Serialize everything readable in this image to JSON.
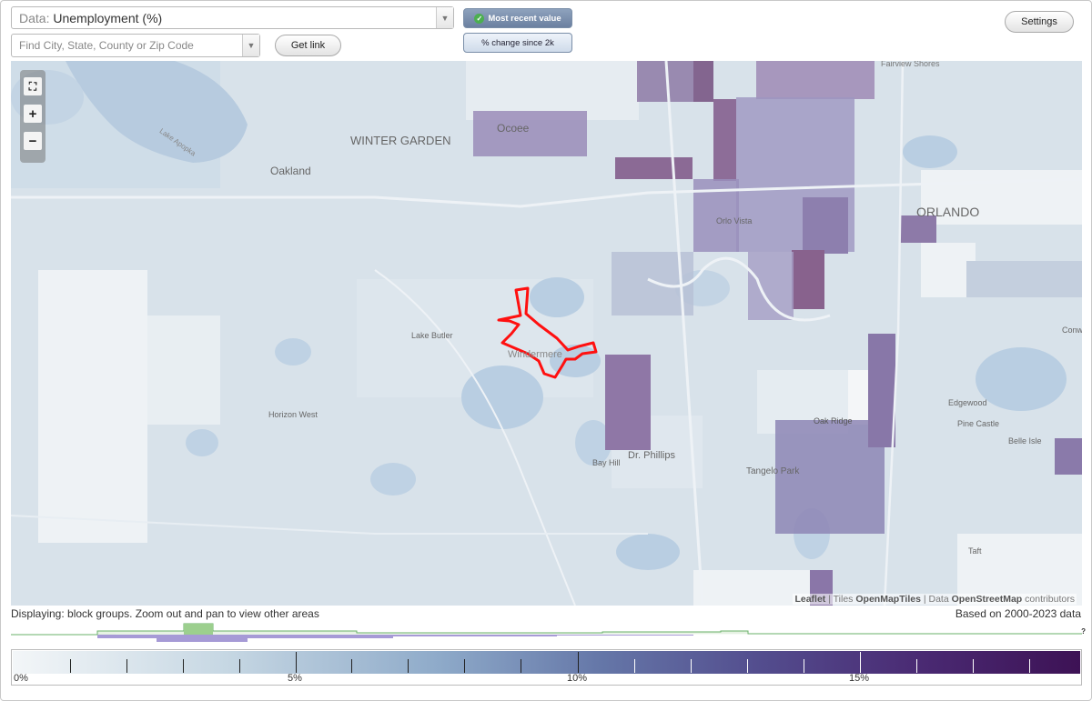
{
  "header": {
    "data_select": {
      "prefix": "Data:",
      "value": "Unemployment (%)"
    },
    "search": {
      "placeholder": "Find City, State, County or Zip Code",
      "value": ""
    },
    "get_link_label": "Get link",
    "settings_label": "Settings",
    "toggle_active": "Most recent value",
    "toggle_inactive": "% change since 2k"
  },
  "map": {
    "place_labels": {
      "winter_garden": "WINTER GARDEN",
      "oakland": "Oakland",
      "ocoee": "Ocoee",
      "orlando": "ORLANDO",
      "orlo_vista": "Orlo Vista",
      "lake_butler": "Lake Butler",
      "windermere": "Windermere",
      "horizon_west": "Horizon West",
      "bay_hill": "Bay Hill",
      "dr_phillips": "Dr. Phillips",
      "oak_ridge": "Oak Ridge",
      "tangelo_park": "Tangelo Park",
      "edgewood": "Edgewood",
      "pine_castle": "Pine Castle",
      "belle_isle": "Belle Isle",
      "taft": "Taft",
      "fairview_shores": "Fairview Shores",
      "conway": "Conw",
      "lake_apopka": "Lake Apopka"
    },
    "selected_region_color": "#ff1010",
    "attribution": {
      "leaflet": "Leaflet",
      "sep1": " | Tiles ",
      "tiles": "OpenMapTiles",
      "sep2": " | Data ",
      "data": "OpenStreetMap",
      "suffix": " contributors"
    },
    "zoom_controls": {
      "fullscreen_icon": "fullscreen-icon",
      "zoom_in": "+",
      "zoom_out": "−"
    }
  },
  "footer": {
    "displaying": "Displaying: block groups. Zoom out and pan to view other areas",
    "based_on": "Based on 2000-2023 data",
    "unknown_marker": "?"
  },
  "legend": {
    "tick_labels": [
      "0%",
      "5%",
      "10%",
      "15%"
    ],
    "min_value": 0,
    "max_value": 19,
    "colors": [
      "#f3f6f8",
      "#c6d7e3",
      "#8eaac9",
      "#6577a8",
      "#534d8e",
      "#4a2a73",
      "#3d1255"
    ]
  }
}
